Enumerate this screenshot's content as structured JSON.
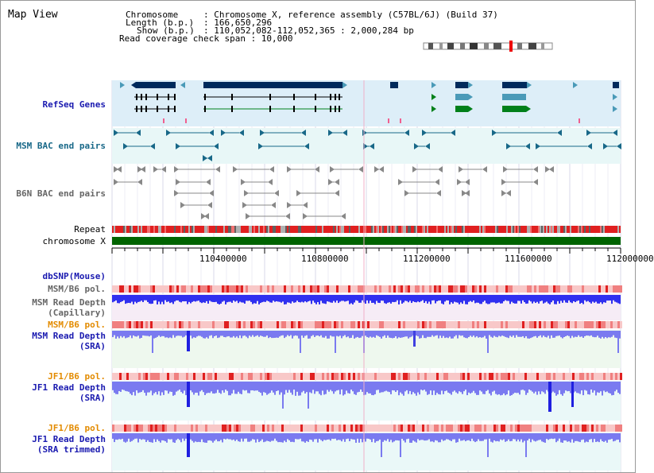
{
  "title": "Map View",
  "info": {
    "chromosome_label": "Chromosome",
    "chromosome_value": ": Chromosome X, reference assembly (C57BL/6J) (Build 37)",
    "length_label": "Length (b.p.)",
    "length_value": ": 166,650,296",
    "show_label": "Show (b.p.)",
    "show_value": ": 110,052,082-112,052,365 : 2,000,284 bp",
    "coverage": "Read coverage check span : 10,000"
  },
  "tracks": {
    "refseq": "RefSeq Genes",
    "msm_bac": "MSM BAC end pairs",
    "b6n_bac": "B6N BAC end pairs",
    "repeat": "Repeat",
    "chromosome": "chromosome X",
    "dbsnp": "dbSNP(Mouse)",
    "msm_b6_pol_1": "MSM/B6 pol.",
    "msm_depth_cap": "MSM Read Depth",
    "msm_depth_cap_sub": "(Capillary)",
    "msm_b6_pol_2": "MSM/B6 pol.",
    "msm_depth_sra": "MSM Read Depth",
    "msm_depth_sra_sub": "(SRA)",
    "jf1_b6_pol_1": "JF1/B6 pol.",
    "jf1_depth_sra": "JF1 Read Depth",
    "jf1_depth_sra_sub": "(SRA)",
    "jf1_b6_pol_2": "JF1/B6 pol.",
    "jf1_depth_trim": "JF1 Read Depth",
    "jf1_depth_trim_sub": "(SRA trimmed)"
  },
  "ruler": {
    "ticks": [
      "110400000",
      "110800000",
      "111200000",
      "111600000",
      "112000000"
    ]
  },
  "colors": {
    "refseq_bg": "#ddeef8",
    "bac_bg": "#e8f7f7",
    "gene_dark": "#002a5c",
    "gene_teal": "#4a9ab8",
    "gene_green": "#00801a",
    "chrom_green": "#006400",
    "depth_blue": "#3030f0",
    "depth_light": "#7a7af0"
  }
}
